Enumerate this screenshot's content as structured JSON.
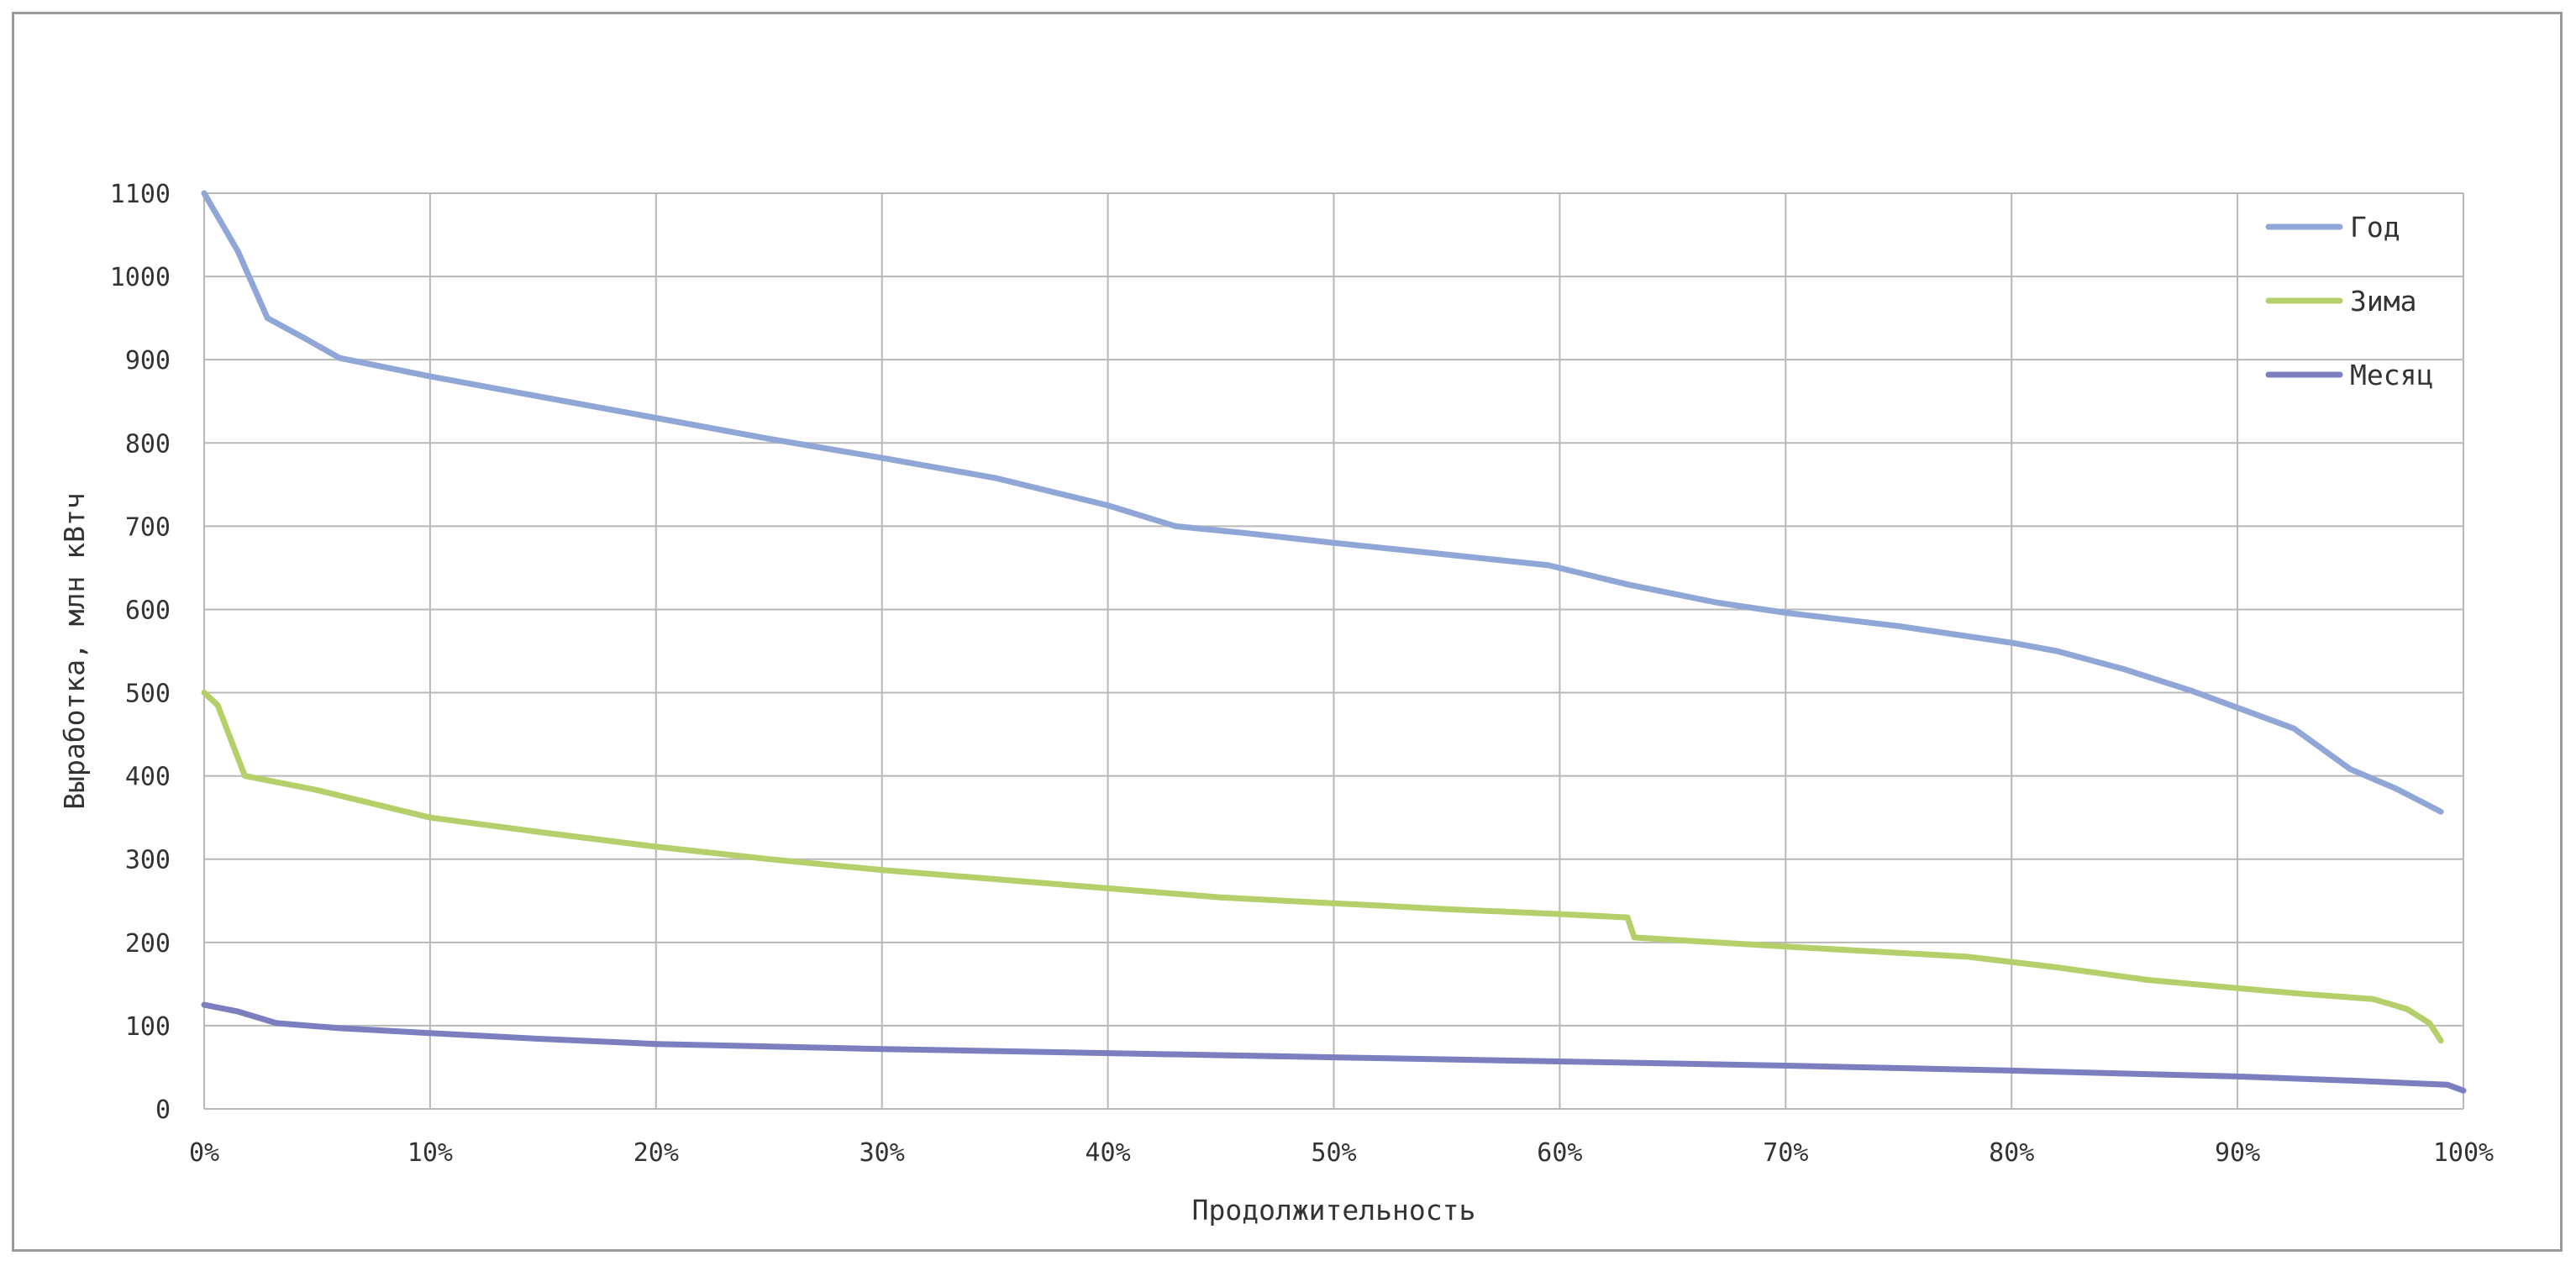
{
  "chart_data": {
    "type": "line",
    "title": "",
    "xlabel": "Продолжительность",
    "ylabel": "Выработка, млн кВтч",
    "xlim": [
      0,
      100
    ],
    "ylim": [
      0,
      1100
    ],
    "x_ticks": [
      "0%",
      "10%",
      "20%",
      "30%",
      "40%",
      "50%",
      "60%",
      "70%",
      "80%",
      "90%",
      "100%"
    ],
    "y_ticks": [
      "0",
      "100",
      "200",
      "300",
      "400",
      "500",
      "600",
      "700",
      "800",
      "900",
      "1000",
      "1100"
    ],
    "grid": true,
    "legend_position": "top-right",
    "series": [
      {
        "name": "Год",
        "color": "#8fa6d6",
        "points": [
          [
            0,
            1100
          ],
          [
            1.5,
            1030
          ],
          [
            2.8,
            950
          ],
          [
            4.5,
            925
          ],
          [
            6,
            902
          ],
          [
            10,
            880
          ],
          [
            15,
            855
          ],
          [
            20,
            830
          ],
          [
            25,
            805
          ],
          [
            30,
            782
          ],
          [
            35,
            758
          ],
          [
            40,
            725
          ],
          [
            43,
            700
          ],
          [
            46,
            692
          ],
          [
            50,
            680
          ],
          [
            55,
            666
          ],
          [
            59.5,
            653
          ],
          [
            63,
            630
          ],
          [
            67,
            608
          ],
          [
            70,
            596
          ],
          [
            75,
            580
          ],
          [
            80,
            560
          ],
          [
            82,
            550
          ],
          [
            85,
            528
          ],
          [
            88,
            502
          ],
          [
            92.5,
            457
          ],
          [
            95,
            408
          ],
          [
            97,
            385
          ],
          [
            99,
            357
          ]
        ]
      },
      {
        "name": "Зима",
        "color": "#b5cf6b",
        "points": [
          [
            0,
            500
          ],
          [
            0.6,
            485
          ],
          [
            1.8,
            400
          ],
          [
            5,
            383
          ],
          [
            10,
            350
          ],
          [
            15,
            332
          ],
          [
            20,
            315
          ],
          [
            25,
            300
          ],
          [
            30,
            287
          ],
          [
            35,
            276
          ],
          [
            40,
            265
          ],
          [
            45,
            254
          ],
          [
            50,
            247
          ],
          [
            55,
            240
          ],
          [
            60,
            234
          ],
          [
            63,
            230
          ],
          [
            63.3,
            206
          ],
          [
            70,
            195
          ],
          [
            78,
            183
          ],
          [
            82,
            170
          ],
          [
            86,
            155
          ],
          [
            90,
            145
          ],
          [
            93,
            138
          ],
          [
            96,
            132
          ],
          [
            97.5,
            120
          ],
          [
            98.5,
            103
          ],
          [
            99,
            82
          ]
        ]
      },
      {
        "name": "Месяц",
        "color": "#7c7fbf",
        "points": [
          [
            0,
            125
          ],
          [
            1.5,
            117
          ],
          [
            3.2,
            103
          ],
          [
            6,
            97
          ],
          [
            10,
            91
          ],
          [
            15,
            84
          ],
          [
            20,
            78
          ],
          [
            30,
            72
          ],
          [
            40,
            67
          ],
          [
            50,
            62
          ],
          [
            60,
            57
          ],
          [
            70,
            52
          ],
          [
            80,
            46
          ],
          [
            90,
            39
          ],
          [
            95,
            34
          ],
          [
            99.3,
            29
          ],
          [
            100,
            22
          ]
        ]
      }
    ]
  }
}
